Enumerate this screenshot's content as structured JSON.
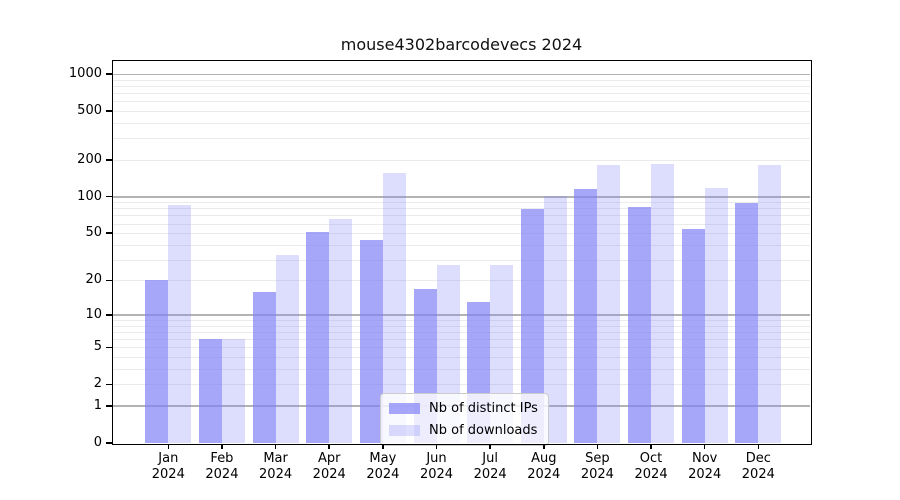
{
  "chart_data": {
    "type": "bar",
    "title": "mouse4302barcodevecs 2024",
    "year": "2024",
    "categories": [
      "Jan",
      "Feb",
      "Mar",
      "Apr",
      "May",
      "Jun",
      "Jul",
      "Aug",
      "Sep",
      "Oct",
      "Nov",
      "Dec"
    ],
    "series": [
      {
        "name": "Nb of distinct IPs",
        "color": "rgba(130,130,246,0.70)",
        "values": [
          20,
          6,
          16,
          51,
          44,
          17,
          13,
          79,
          115,
          82,
          54,
          88
        ]
      },
      {
        "name": "Nb of downloads",
        "color": "rgba(130,130,246,0.27)",
        "values": [
          85,
          6,
          33,
          65,
          157,
          27,
          27,
          102,
          183,
          186,
          117,
          183
        ]
      }
    ],
    "yticks": [
      0,
      1,
      2,
      5,
      10,
      20,
      50,
      100,
      200,
      500,
      1000
    ],
    "yscale": "log10(1+x)",
    "ylim": [
      0,
      1280
    ],
    "grid": {
      "major": [
        1,
        10,
        100,
        1000
      ],
      "minor_decades": [
        1,
        10,
        100
      ]
    },
    "legend_position": "lower center"
  },
  "colors": {
    "major_grid": "#b3b3b3",
    "minor_grid": "#ebebeb",
    "axis": "#000000"
  }
}
